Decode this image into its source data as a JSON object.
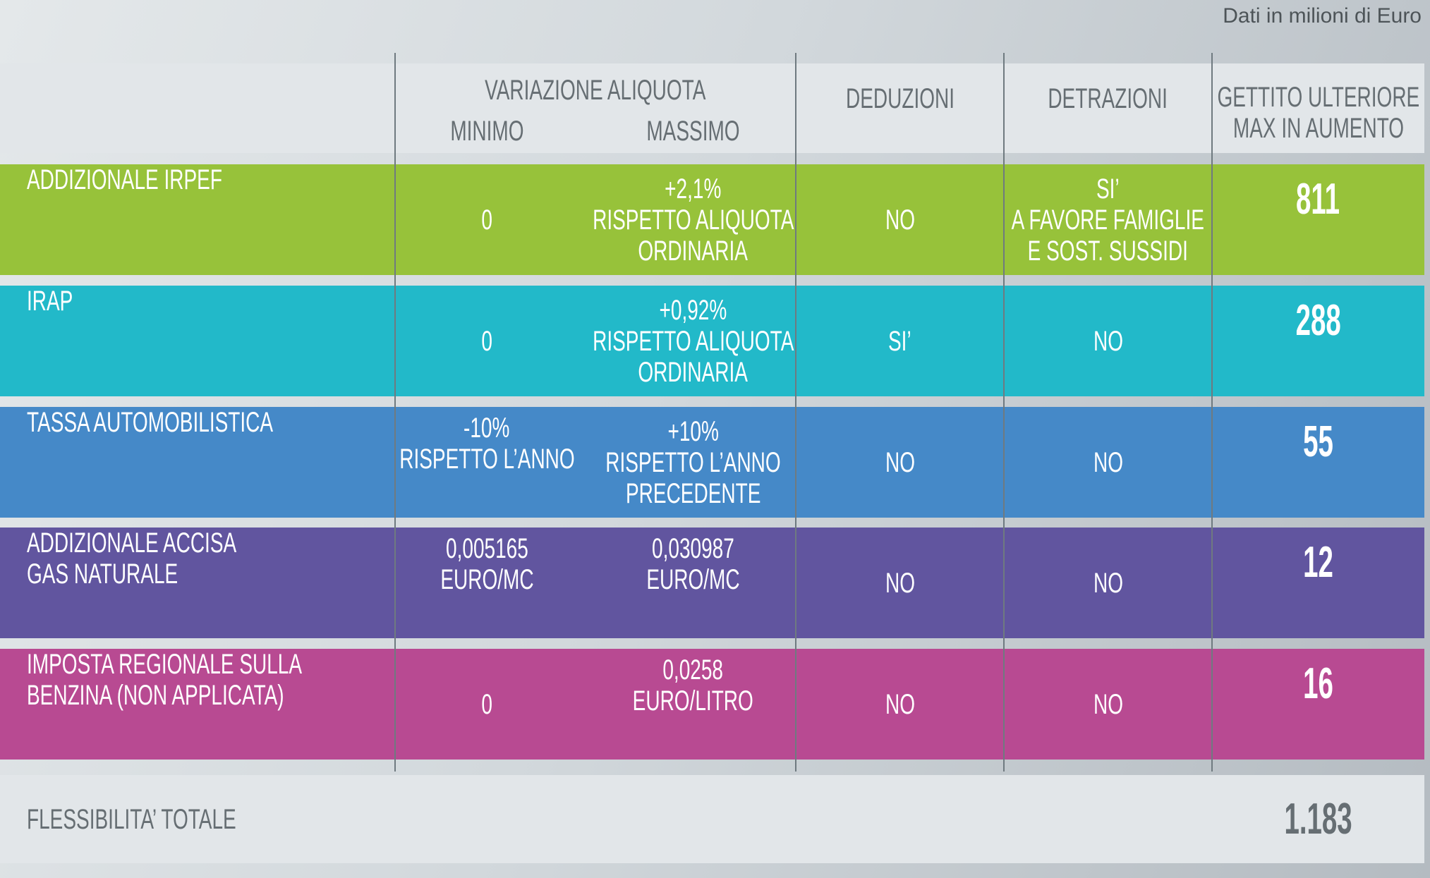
{
  "note": "Dati in milioni di Euro",
  "header": {
    "variazione": "VARIAZIONE ALIQUOTA",
    "minimo": "MINIMO",
    "massimo": "MASSIMO",
    "deduzioni": "DEDUZIONI",
    "detrazioni": "DETRAZIONI",
    "gettito_1": "GETTITO ULTERIORE",
    "gettito_2": "MAX IN AUMENTO"
  },
  "colors": {
    "green": "#97c23a",
    "teal": "#22b9c9",
    "blue": "#4589c8",
    "purple": "#61559f",
    "magenta": "#b84a92"
  },
  "rows": [
    {
      "label": [
        "ADDIZIONALE IRPEF"
      ],
      "minimo": [
        "0"
      ],
      "massimo": [
        "+2,1%",
        "RISPETTO ALIQUOTA",
        "ORDINARIA"
      ],
      "deduzioni": "NO",
      "detrazioni": [
        "SI’",
        "A FAVORE FAMIGLIE",
        "E SOST. SUSSIDI"
      ],
      "gettito": "811"
    },
    {
      "label": [
        "IRAP"
      ],
      "minimo": [
        "0"
      ],
      "massimo": [
        "+0,92%",
        "RISPETTO ALIQUOTA",
        "ORDINARIA"
      ],
      "deduzioni": "SI’",
      "detrazioni": [
        "NO"
      ],
      "gettito": "288"
    },
    {
      "label": [
        "TASSA AUTOMOBILISTICA"
      ],
      "minimo": [
        "-10%",
        "RISPETTO L’ANNO"
      ],
      "massimo": [
        "+10%",
        "RISPETTO L’ANNO",
        "PRECEDENTE"
      ],
      "deduzioni": "NO",
      "detrazioni": [
        "NO"
      ],
      "gettito": "55"
    },
    {
      "label": [
        "ADDIZIONALE ACCISA",
        "GAS NATURALE"
      ],
      "minimo": [
        "0,005165",
        "EURO/MC"
      ],
      "massimo": [
        "0,030987",
        "EURO/MC"
      ],
      "deduzioni": "NO",
      "detrazioni": [
        "NO"
      ],
      "gettito": "12"
    },
    {
      "label": [
        "IMPOSTA REGIONALE SULLA",
        "BENZINA (NON APPLICATA)"
      ],
      "minimo": [
        "0"
      ],
      "massimo": [
        "0,0258",
        "EURO/LITRO"
      ],
      "deduzioni": "NO",
      "detrazioni": [
        "NO"
      ],
      "gettito": "16"
    }
  ],
  "total": {
    "label": "FLESSIBILITA’ TOTALE",
    "value": "1.183"
  }
}
